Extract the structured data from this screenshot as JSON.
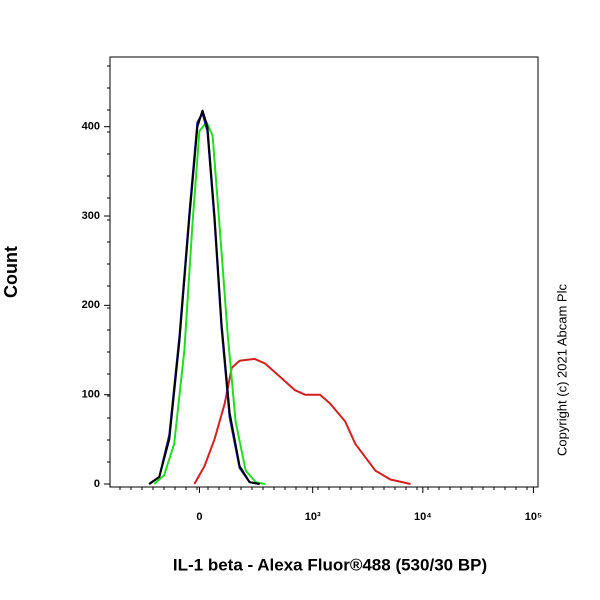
{
  "chart_data": {
    "type": "line",
    "x_label": "IL-1 beta - Alexa Fluor®488 (530/30 BP)",
    "y_label": "Count",
    "annotation": "Copyright (c) 2021 Abcam Plc",
    "xscale": "biexponential",
    "xlim": [
      -600,
      110000
    ],
    "xticks": [
      0,
      {
        "value": 1000,
        "label": "10³"
      },
      {
        "value": 10000,
        "label": "10⁴"
      },
      {
        "value": 100000,
        "label": "10⁵"
      }
    ],
    "ylim": [
      0,
      478
    ],
    "yticks": [
      0,
      100,
      200,
      300,
      400
    ],
    "series": [
      {
        "color": "#d42020",
        "x": [
          -20,
          20,
          61,
          105,
          138,
          179,
          271,
          349,
          493,
          685,
          850,
          1170,
          1446,
          1983,
          2445,
          3016,
          3721,
          5092,
          7745
        ],
        "values": [
          0,
          20,
          50,
          90,
          130,
          138,
          140,
          135,
          120,
          105,
          100,
          100,
          90,
          70,
          45,
          30,
          15,
          5,
          0
        ]
      },
      {
        "color": "#22dd22",
        "x": [
          -208,
          -153,
          -105,
          -61,
          -28,
          0,
          28,
          53,
          82,
          118,
          158,
          214,
          279,
          349
        ],
        "values": [
          0,
          10,
          45,
          150,
          290,
          395,
          405,
          390,
          290,
          170,
          70,
          15,
          2,
          0
        ]
      },
      {
        "color": "#1a1aa0",
        "x": [
          -238,
          -179,
          -128,
          -82,
          -40,
          -8,
          12,
          32,
          61,
          91,
          128,
          179,
          238,
          308
        ],
        "values": [
          0,
          8,
          55,
          165,
          305,
          405,
          415,
          395,
          295,
          175,
          75,
          18,
          2,
          0
        ]
      },
      {
        "color": "#000000",
        "x": [
          -238,
          -179,
          -128,
          -82,
          -40,
          -8,
          12,
          32,
          61,
          91,
          128,
          179,
          238,
          308
        ],
        "values": [
          0,
          8,
          50,
          160,
          300,
          400,
          418,
          400,
          300,
          180,
          80,
          20,
          2,
          0
        ]
      }
    ]
  }
}
